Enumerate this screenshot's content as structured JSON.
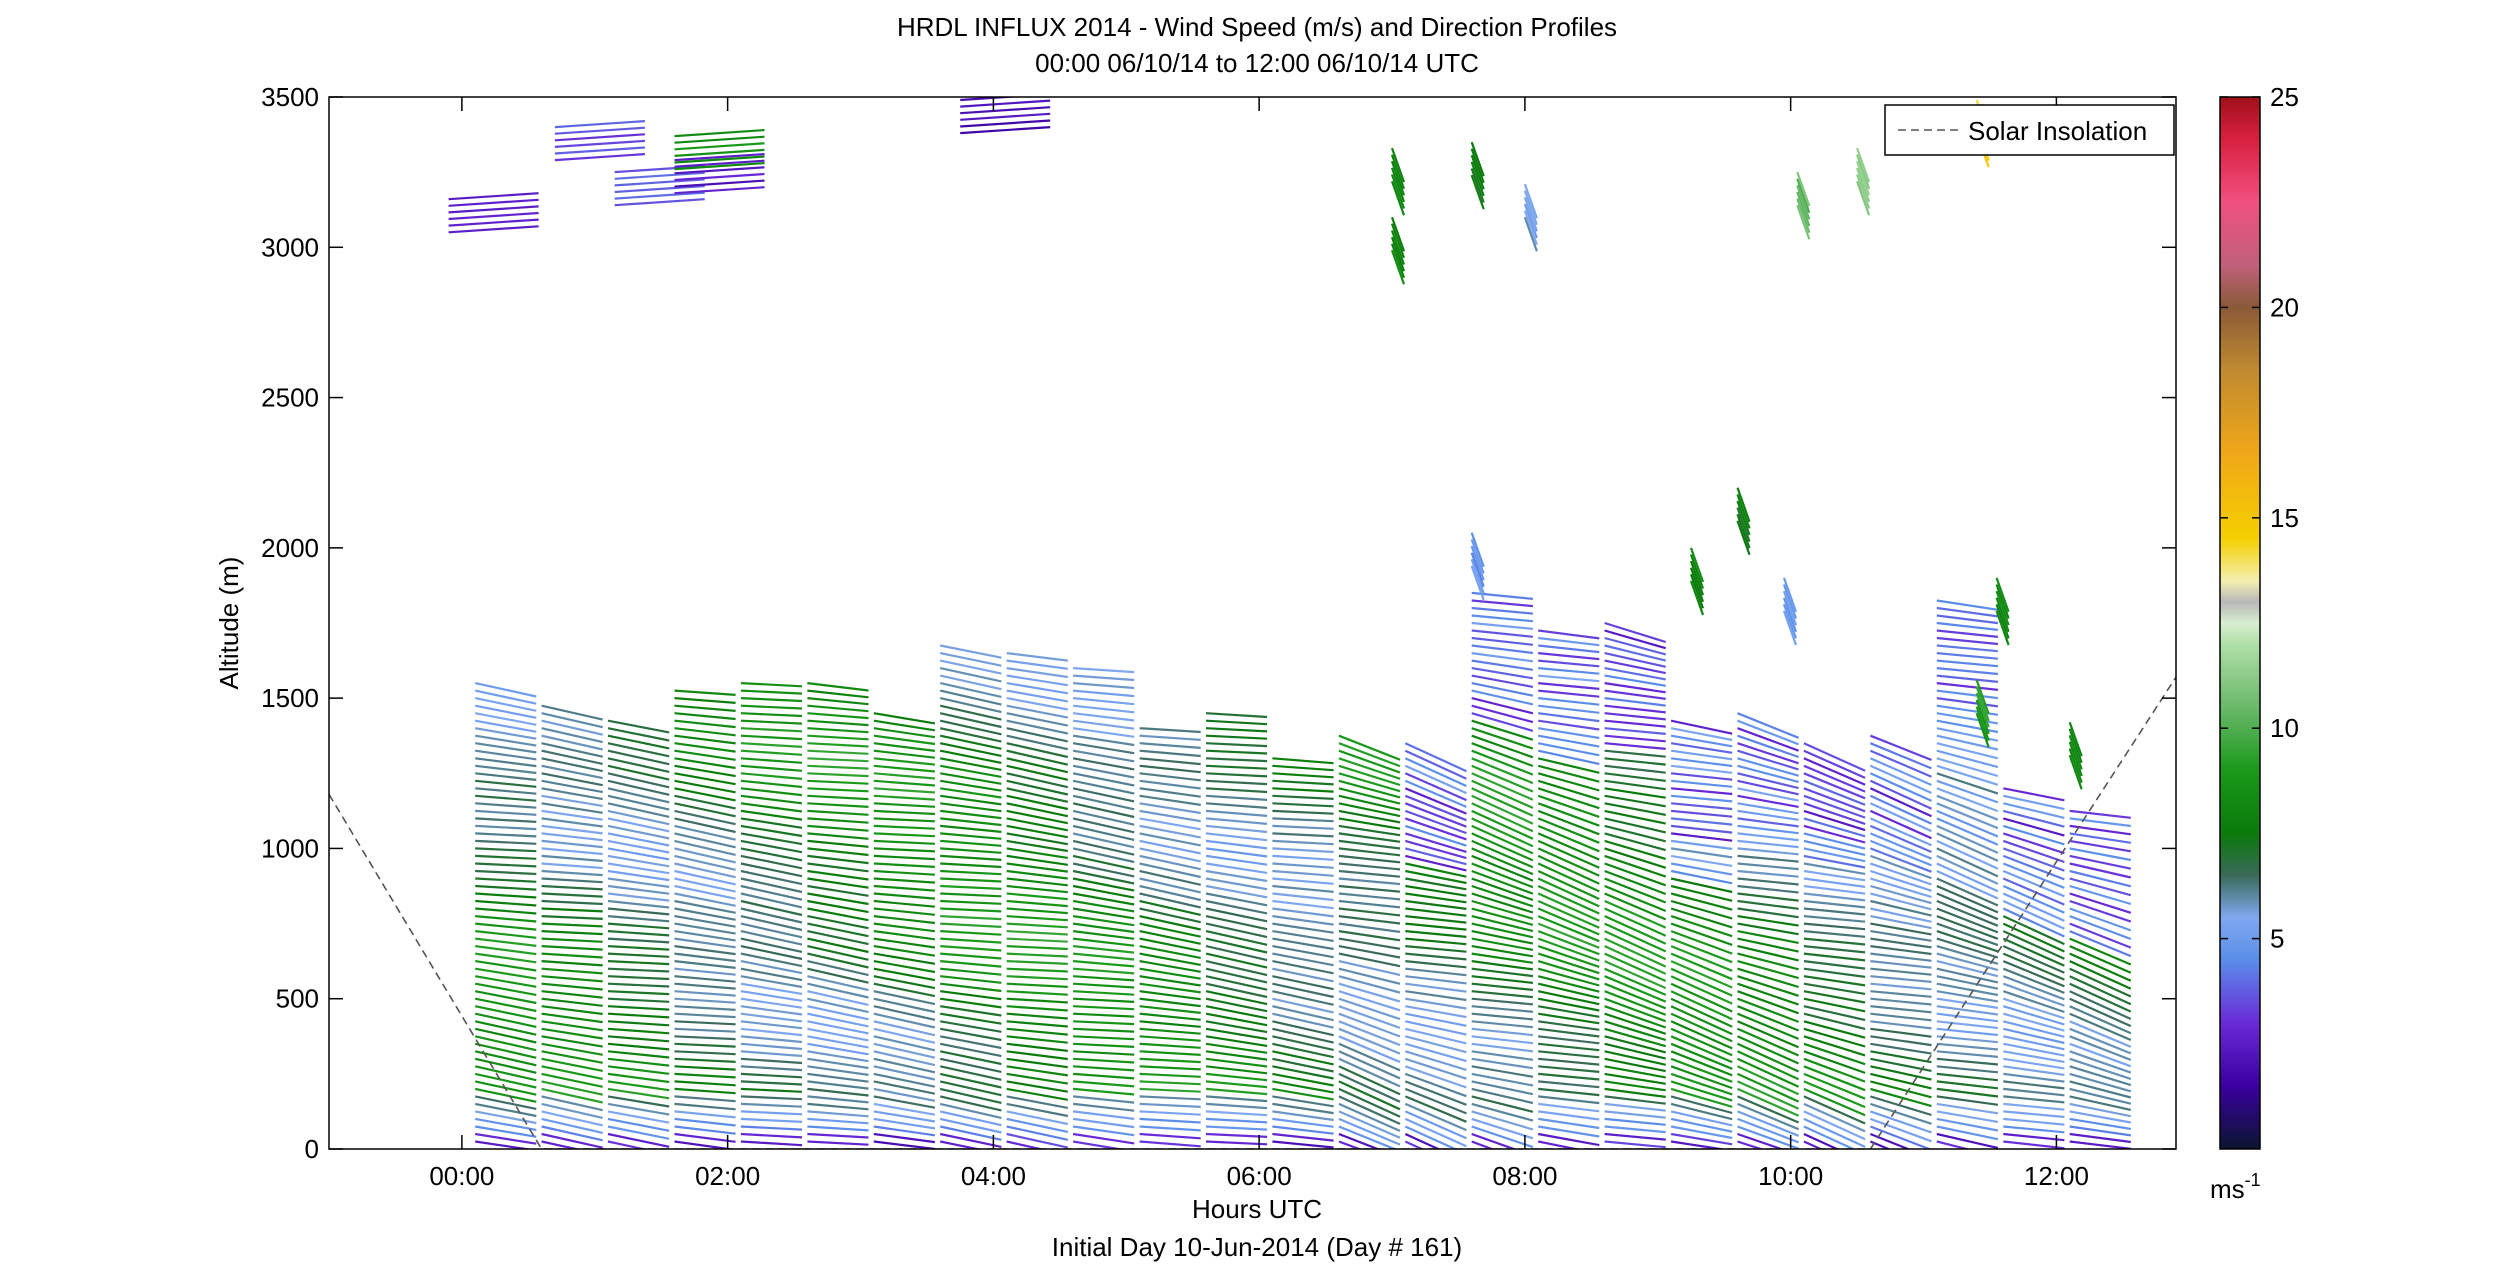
{
  "chart_data": {
    "type": "scatter",
    "subtype": "wind-barb-profile",
    "title": "HRDL INFLUX 2014 - Wind Speed (m/s) and Direction Profiles",
    "subtitle": "00:00 06/10/14 to 12:00 06/10/14  UTC",
    "xlabel": "Hours UTC",
    "xlabel2": "Initial Day 10-Jun-2014 (Day # 161)",
    "ylabel": "Altitude (m)",
    "xlim": [
      -1.0,
      12.9
    ],
    "ylim": [
      0,
      3500
    ],
    "x_ticks": [
      0,
      2,
      4,
      6,
      8,
      10,
      12
    ],
    "x_tick_labels": [
      "00:00",
      "02:00",
      "04:00",
      "06:00",
      "08:00",
      "10:00",
      "12:00"
    ],
    "y_ticks": [
      0,
      500,
      1000,
      1500,
      2000,
      2500,
      3000,
      3500
    ],
    "y_tick_labels": [
      "0",
      "500",
      "1000",
      "1500",
      "2000",
      "2500",
      "3000",
      "3500"
    ],
    "legend": {
      "placement": "top-right",
      "entries": [
        "Solar Insolation"
      ]
    },
    "colorbar": {
      "unit_label": "ms",
      "unit_exponent": "-1",
      "range": [
        0,
        25
      ],
      "ticks": [
        5,
        10,
        15,
        20,
        25
      ],
      "tick_labels": [
        "5",
        "10",
        "15",
        "20",
        "25"
      ],
      "stops": [
        {
          "v": 0,
          "c": "#0b1530"
        },
        {
          "v": 1.5,
          "c": "#3a00a0"
        },
        {
          "v": 3,
          "c": "#6a2ad8"
        },
        {
          "v": 4.5,
          "c": "#5a8ee8"
        },
        {
          "v": 5.5,
          "c": "#80a8f0"
        },
        {
          "v": 6.5,
          "c": "#3a6a5a"
        },
        {
          "v": 7.5,
          "c": "#0a7a0a"
        },
        {
          "v": 9,
          "c": "#1a9a1a"
        },
        {
          "v": 10.5,
          "c": "#6ab86a"
        },
        {
          "v": 12,
          "c": "#b0e0a8"
        },
        {
          "v": 12.5,
          "c": "#d8eed0"
        },
        {
          "v": 13,
          "c": "#b8b8b8"
        },
        {
          "v": 13.5,
          "c": "#f4efb0"
        },
        {
          "v": 14.5,
          "c": "#f5d000"
        },
        {
          "v": 16.5,
          "c": "#f0a818"
        },
        {
          "v": 18.5,
          "c": "#c08a30"
        },
        {
          "v": 20,
          "c": "#8a5a38"
        },
        {
          "v": 21,
          "c": "#c0607a"
        },
        {
          "v": 22.5,
          "c": "#f05080"
        },
        {
          "v": 24,
          "c": "#d82040"
        },
        {
          "v": 25,
          "c": "#a0101a"
        }
      ]
    },
    "series": [
      {
        "kind": "profile",
        "profiles": [
          {
            "t": 0.1,
            "top": 1550
          },
          {
            "t": 0.6,
            "top": 1480
          },
          {
            "t": 1.1,
            "top": 1440
          },
          {
            "t": 1.6,
            "top": 1540
          },
          {
            "t": 2.1,
            "top": 1570
          },
          {
            "t": 2.6,
            "top": 1550
          },
          {
            "t": 3.1,
            "top": 1450
          },
          {
            "t": 3.6,
            "top": 1690
          },
          {
            "t": 4.1,
            "top": 1670
          },
          {
            "t": 4.6,
            "top": 1610
          },
          {
            "t": 5.1,
            "top": 1420
          },
          {
            "t": 5.6,
            "top": 1460
          },
          {
            "t": 6.1,
            "top": 1310
          },
          {
            "t": 6.6,
            "top": 1380
          },
          {
            "t": 7.1,
            "top": 1370
          },
          {
            "t": 7.6,
            "top": 1860
          },
          {
            "t": 8.1,
            "top": 1740
          },
          {
            "t": 8.6,
            "top": 1750
          },
          {
            "t": 9.1,
            "top": 1440
          },
          {
            "t": 9.6,
            "top": 1460
          },
          {
            "t": 10.1,
            "top": 1360
          },
          {
            "t": 10.6,
            "top": 1380
          },
          {
            "t": 11.1,
            "top": 1840
          },
          {
            "t": 11.6,
            "top": 1200
          },
          {
            "t": 12.1,
            "top": 1140
          }
        ]
      },
      {
        "kind": "line",
        "name": "Solar Insolation",
        "x": [
          -1.0,
          0.6,
          10.6,
          12.9
        ],
        "y": [
          1180,
          0,
          0,
          1570
        ]
      }
    ]
  }
}
